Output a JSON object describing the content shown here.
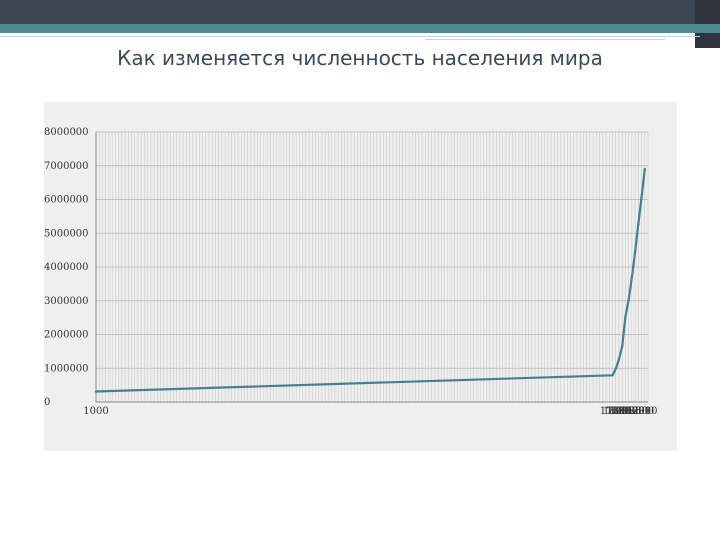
{
  "title": "Как изменяется численность населения мира",
  "colors": {
    "header_bar": "#3d4452",
    "accent_teal": "#4f8a8f",
    "plot_background": "#efefef",
    "gridlines": "#c8c8c8",
    "line": "#4a7f84"
  },
  "chart_data": {
    "type": "line",
    "title": "Как изменяется численность населения мира",
    "xlabel": "",
    "ylabel": "",
    "ylim": [
      0,
      8000000
    ],
    "ytick_labels": [
      "0",
      "1000000",
      "2000000",
      "3000000",
      "4000000",
      "5000000",
      "6000000",
      "7000000",
      "8000000"
    ],
    "xtick_labels": [
      "1000",
      "1750",
      "1800",
      "1850",
      "1900",
      "1950",
      "1960",
      "1970",
      "1980",
      "1990",
      "2000",
      "2010"
    ],
    "grid": true,
    "legend": "none",
    "series": [
      {
        "x": [
          1000,
          1750,
          1800,
          1850,
          1900,
          1950,
          1960,
          1970,
          1980,
          1990,
          2000,
          2010
        ],
        "values": [
          310000,
          791000,
          978000,
          1262000,
          1650000,
          2520000,
          3020000,
          3700000,
          4440000,
          5270000,
          6060000,
          6900000
        ]
      }
    ]
  }
}
